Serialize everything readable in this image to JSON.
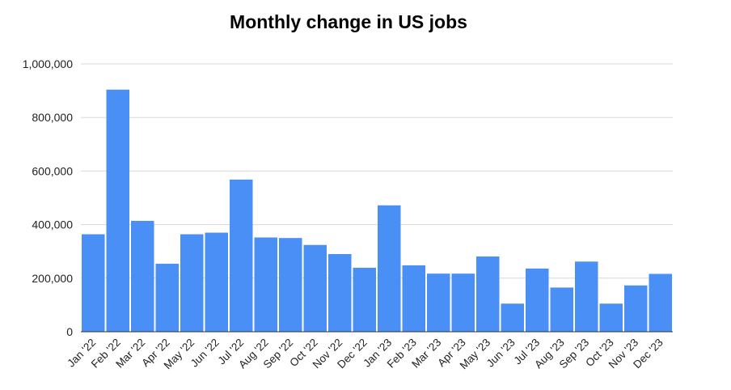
{
  "chart_data": {
    "type": "bar",
    "title": "Monthly change in US jobs",
    "xlabel": "",
    "ylabel": "",
    "ylim": [
      0,
      1000000
    ],
    "yticks": [
      "0",
      "200,000",
      "400,000",
      "600,000",
      "800,000",
      "1,000,000"
    ],
    "ytick_values": [
      0,
      200000,
      400000,
      600000,
      800000,
      1000000
    ],
    "grid": true,
    "legend": "none",
    "bar_color": "#4a8ff5",
    "categories": [
      "Jan '22",
      "Feb '22",
      "Mar '22",
      "Apr '22",
      "May '22",
      "Jun '22",
      "Jul '22",
      "Aug '22",
      "Sep '22",
      "Oct '22",
      "Nov '22",
      "Dec '22",
      "Jan '23",
      "Feb '23",
      "Mar '23",
      "Apr '23",
      "May '23",
      "Jun '23",
      "Jul '23",
      "Aug '23",
      "Sep '23",
      "Oct '23",
      "Nov '23",
      "Dec '23"
    ],
    "values": [
      364000,
      904000,
      414000,
      254000,
      364000,
      370000,
      568000,
      352000,
      350000,
      324000,
      290000,
      239000,
      472000,
      248000,
      217000,
      217000,
      281000,
      105000,
      236000,
      165000,
      262000,
      105000,
      173000,
      216000
    ]
  }
}
